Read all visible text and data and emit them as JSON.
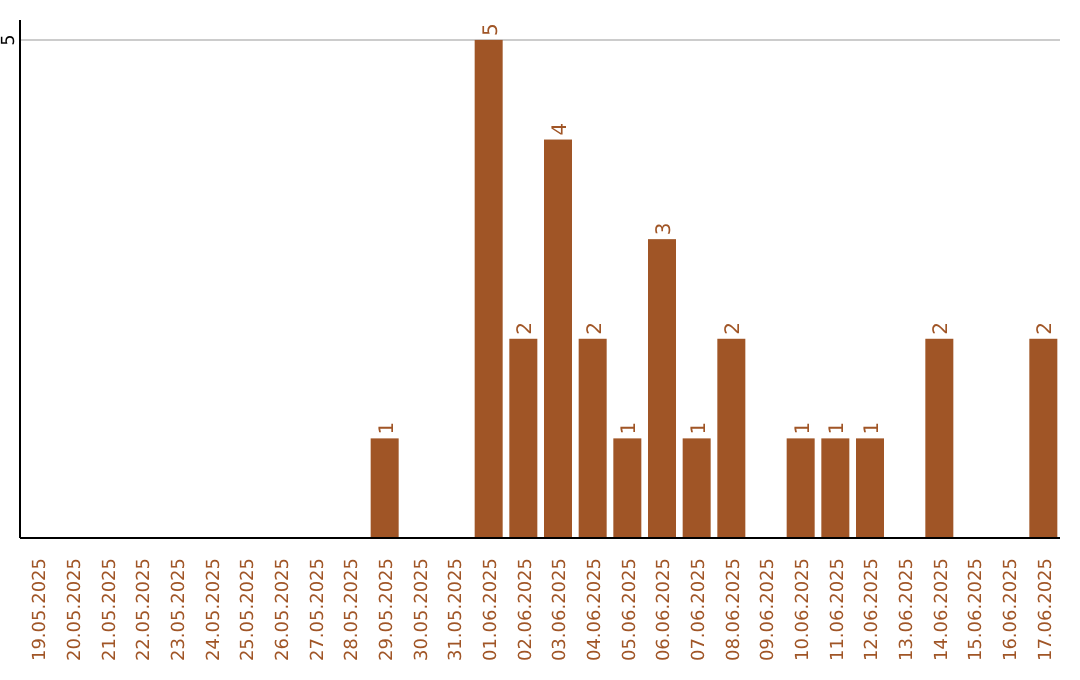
{
  "chart_data": {
    "type": "bar",
    "categories": [
      "19.05.2025",
      "20.05.2025",
      "21.05.2025",
      "22.05.2025",
      "23.05.2025",
      "24.05.2025",
      "25.05.2025",
      "26.05.2025",
      "27.05.2025",
      "28.05.2025",
      "29.05.2025",
      "30.05.2025",
      "31.05.2025",
      "01.06.2025",
      "02.06.2025",
      "03.06.2025",
      "04.06.2025",
      "05.06.2025",
      "06.06.2025",
      "07.06.2025",
      "08.06.2025",
      "09.06.2025",
      "10.06.2025",
      "11.06.2025",
      "12.06.2025",
      "13.06.2025",
      "14.06.2025",
      "15.06.2025",
      "16.06.2025",
      "17.06.2025"
    ],
    "values": [
      0,
      0,
      0,
      0,
      0,
      0,
      0,
      0,
      0,
      0,
      1,
      0,
      0,
      5,
      2,
      4,
      2,
      1,
      3,
      1,
      2,
      0,
      1,
      1,
      1,
      0,
      2,
      0,
      0,
      2
    ],
    "value_labels": [
      null,
      null,
      null,
      null,
      null,
      null,
      null,
      null,
      null,
      null,
      "1",
      null,
      null,
      "5",
      "2",
      "4",
      "2",
      "1",
      "3",
      "1",
      "2",
      null,
      "1",
      "1",
      "1",
      null,
      "2",
      null,
      null,
      "2"
    ],
    "color": "#a05526",
    "ylim": [
      0,
      5.2
    ],
    "yticks": [
      5
    ],
    "grid": "y"
  }
}
